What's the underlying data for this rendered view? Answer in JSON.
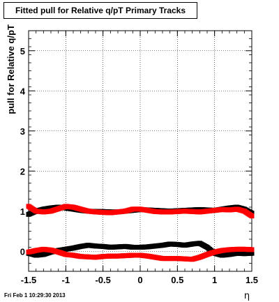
{
  "footer_text": "Fri Feb  1 10:29:30 2013",
  "chart_data": {
    "type": "scatter",
    "title": "Fitted pull for Relative q/pT  Primary Tracks",
    "xlabel": "η",
    "ylabel": "pull for Relative q/pT",
    "xlim": [
      -1.5,
      1.5
    ],
    "ylim": [
      -0.5,
      5.5
    ],
    "xticks": [
      "-1.5",
      "-1",
      "-0.5",
      "0",
      "0.5",
      "1",
      "1.5"
    ],
    "yticks": [
      "0",
      "1",
      "2",
      "3",
      "4",
      "5"
    ],
    "grid": true,
    "legend": "none",
    "colors": {
      "black_series": "#000000",
      "red_series": "#ff0000"
    },
    "x": [
      -1.5,
      -1.4,
      -1.3,
      -1.2,
      -1.1,
      -1.0,
      -0.9,
      -0.8,
      -0.7,
      -0.6,
      -0.5,
      -0.4,
      -0.3,
      -0.2,
      -0.1,
      0.0,
      0.1,
      0.2,
      0.3,
      0.4,
      0.5,
      0.6,
      0.7,
      0.8,
      0.9,
      1.0,
      1.1,
      1.2,
      1.3,
      1.4,
      1.5
    ],
    "series": [
      {
        "color": "#000000",
        "values": [
          0.92,
          1.0,
          1.05,
          1.08,
          1.1,
          1.08,
          1.05,
          1.02,
          1.0,
          0.99,
          0.99,
          0.98,
          0.98,
          1.0,
          1.02,
          1.04,
          1.03,
          1.02,
          1.01,
          1.0,
          1.01,
          1.02,
          1.03,
          1.04,
          1.03,
          1.02,
          1.05,
          1.08,
          1.1,
          1.05,
          0.95
        ]
      },
      {
        "color": "#000000",
        "values": [
          -0.05,
          -0.1,
          -0.08,
          -0.02,
          0.02,
          0.05,
          0.08,
          0.12,
          0.15,
          0.13,
          0.12,
          0.1,
          0.11,
          0.12,
          0.1,
          0.1,
          0.11,
          0.13,
          0.15,
          0.18,
          0.17,
          0.15,
          0.18,
          0.2,
          0.1,
          -0.05,
          -0.1,
          -0.08,
          -0.05,
          -0.06,
          -0.05
        ]
      },
      {
        "color": "#ff0000",
        "values": [
          1.12,
          1.0,
          0.98,
          1.0,
          1.06,
          1.12,
          1.1,
          1.05,
          1.0,
          0.98,
          0.97,
          0.96,
          0.98,
          1.0,
          1.05,
          1.05,
          1.02,
          0.99,
          0.98,
          0.98,
          0.99,
          1.0,
          0.99,
          0.98,
          1.0,
          1.02,
          1.04,
          1.03,
          1.05,
          1.0,
          0.88
        ]
      },
      {
        "color": "#ff0000",
        "values": [
          -0.02,
          0.02,
          0.05,
          0.03,
          -0.02,
          -0.08,
          -0.1,
          -0.13,
          -0.14,
          -0.15,
          -0.13,
          -0.12,
          -0.12,
          -0.11,
          -0.1,
          -0.1,
          -0.12,
          -0.15,
          -0.18,
          -0.18,
          -0.18,
          -0.19,
          -0.2,
          -0.15,
          -0.08,
          -0.02,
          0.02,
          0.04,
          0.05,
          0.05,
          0.04
        ]
      }
    ]
  }
}
